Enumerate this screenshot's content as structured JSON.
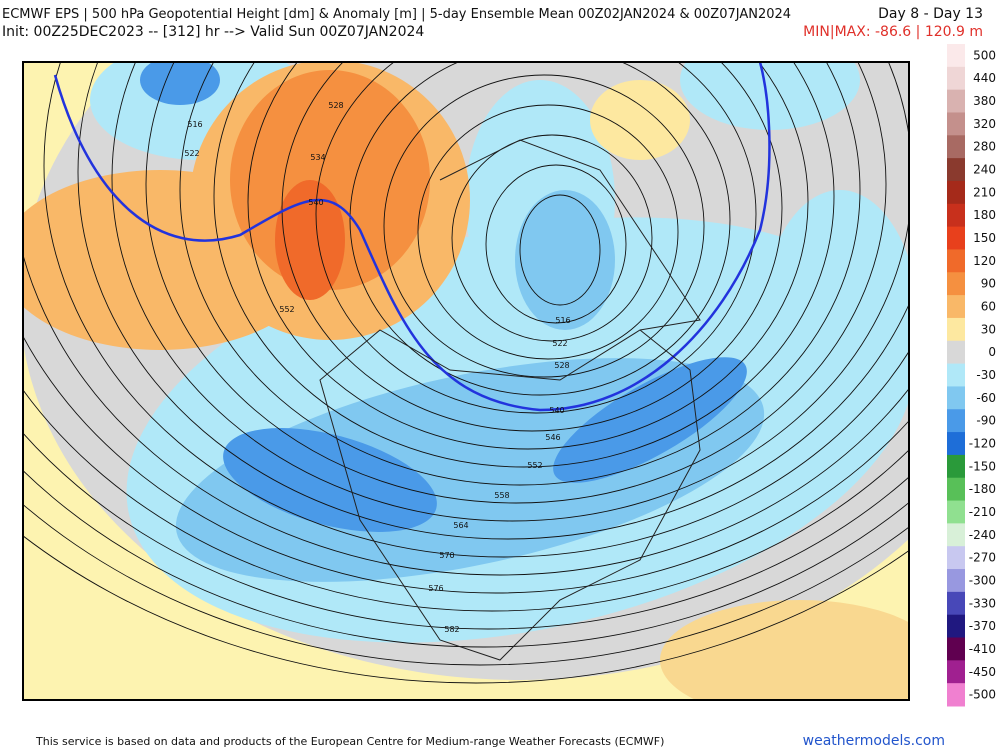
{
  "header": {
    "title": "ECMWF EPS | 500 hPa Geopotential Height [dm] & Anomaly [m] | 5-day Ensemble Mean 00Z02JAN2024 & 00Z07JAN2024",
    "period": "Day 8 - Day 13",
    "init": "Init: 00Z25DEC2023 -- [312] hr --> Valid Sun 00Z07JAN2024",
    "minmax": "MIN|MAX: -86.6 | 120.9 m"
  },
  "contour_labels": [
    516,
    522,
    528,
    534,
    540,
    552,
    516,
    522,
    528,
    540,
    546,
    552,
    558,
    564,
    570,
    576,
    582
  ],
  "colorbar": {
    "levels": [
      500,
      440,
      380,
      320,
      280,
      240,
      210,
      180,
      150,
      120,
      90,
      60,
      30,
      0,
      -30,
      -60,
      -90,
      -120,
      -150,
      -180,
      -210,
      -240,
      -270,
      -300,
      -330,
      -370,
      -410,
      -450,
      -500
    ],
    "colors": [
      "#fbe9ea",
      "#efd6d6",
      "#d9b2b0",
      "#c4908c",
      "#a86a63",
      "#8a3a2e",
      "#a52a1a",
      "#c8301c",
      "#e8401c",
      "#f06a2a",
      "#f59040",
      "#f9b868",
      "#fde8a0",
      "#d8d8d8",
      "#b0e8f8",
      "#80c8f0",
      "#4a9ae8",
      "#1e6ed8",
      "#2a9a3a",
      "#58c058",
      "#90e090",
      "#d8f0d8",
      "#c8c8f0",
      "#9898e0",
      "#4848b8",
      "#201880",
      "#600050",
      "#a02090",
      "#f080d0"
    ]
  },
  "footer": {
    "credit": "This service is based on data and products of the European Centre for Medium-range Weather Forecasts (ECMWF)",
    "site": "weathermodels.com"
  }
}
